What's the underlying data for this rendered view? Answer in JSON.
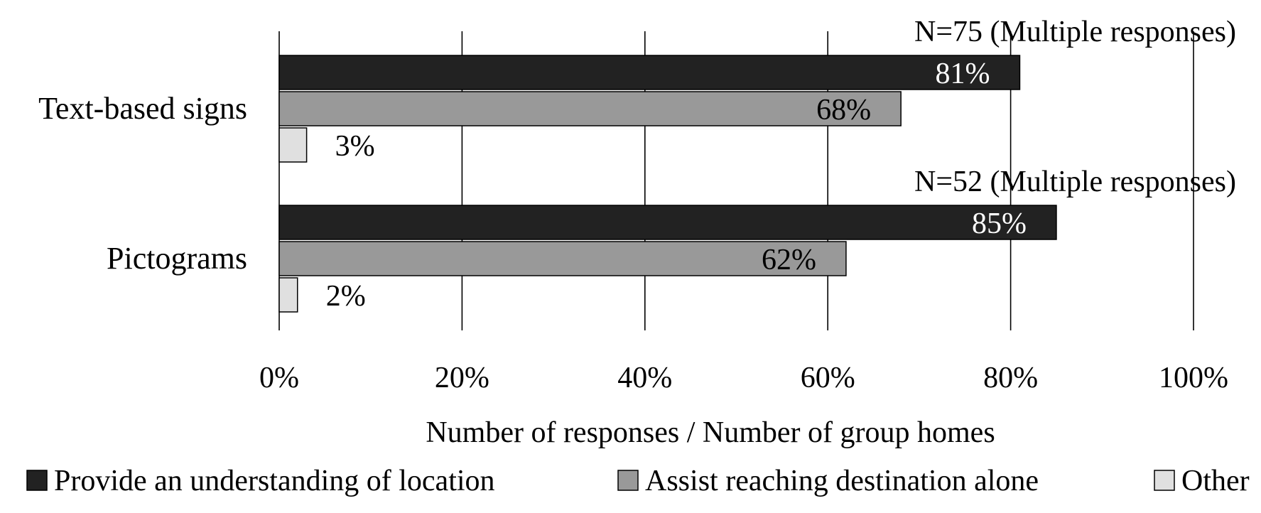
{
  "chart_data": {
    "type": "bar",
    "orientation": "horizontal",
    "title": "",
    "xlabel": "Number of responses / Number of group homes",
    "ylabel": "",
    "xlim": [
      0,
      100
    ],
    "x_ticks": [
      "0%",
      "20%",
      "40%",
      "60%",
      "80%",
      "100%"
    ],
    "x_tick_values": [
      0,
      20,
      40,
      60,
      80,
      100
    ],
    "grid": "vertical",
    "legend_position": "bottom",
    "categories": [
      "Text-based signs",
      "Pictograms"
    ],
    "annotations": [
      "N=75 (Multiple responses)",
      "N=52 (Multiple responses)"
    ],
    "series": [
      {
        "name": "Provide an understanding of location",
        "values": [
          81,
          85
        ],
        "labels": [
          "81%",
          "85%"
        ],
        "color": "#222222"
      },
      {
        "name": "Assist reaching destination alone",
        "values": [
          68,
          62
        ],
        "labels": [
          "68%",
          "62%"
        ],
        "color": "#999999"
      },
      {
        "name": "Other",
        "values": [
          3,
          2
        ],
        "labels": [
          "3%",
          "2%"
        ],
        "color": "#e0e0e0"
      }
    ]
  }
}
